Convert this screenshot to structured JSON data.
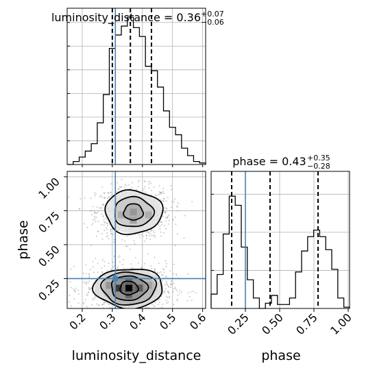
{
  "chart_data": {
    "type": "corner",
    "truth_color": "#4682b4",
    "panels": [
      {
        "id": "luminosity_distance-hist",
        "type": "histogram",
        "title": {
          "main": "luminosity_distance = 0.36",
          "sup": "+0.07",
          "sub": "−0.06"
        },
        "xlim": [
          0.15,
          0.61
        ],
        "ylim": [
          0,
          1.0
        ],
        "bin_edges": [
          0.15,
          0.17,
          0.19,
          0.21,
          0.23,
          0.25,
          0.27,
          0.29,
          0.31,
          0.33,
          0.35,
          0.37,
          0.39,
          0.41,
          0.43,
          0.45,
          0.47,
          0.49,
          0.51,
          0.53,
          0.55,
          0.57,
          0.59,
          0.61
        ],
        "counts": [
          0.0,
          0.02,
          0.05,
          0.09,
          0.14,
          0.28,
          0.47,
          0.78,
          0.87,
          0.93,
          0.99,
          0.92,
          0.86,
          0.66,
          0.63,
          0.52,
          0.36,
          0.25,
          0.2,
          0.11,
          0.06,
          0.02,
          0.01
        ],
        "quantiles": [
          0.3,
          0.36,
          0.43
        ],
        "truth": 0.31
      },
      {
        "id": "phase-hist",
        "type": "histogram",
        "title": {
          "main": "phase = 0.43",
          "sup": "+0.35",
          "sub": "−0.28"
        },
        "xlim": [
          0.0,
          1.01
        ],
        "ylim": [
          0,
          1.0
        ],
        "bin_edges": [
          0.0,
          0.044,
          0.088,
          0.132,
          0.176,
          0.22,
          0.264,
          0.308,
          0.352,
          0.396,
          0.44,
          0.484,
          0.528,
          0.572,
          0.616,
          0.66,
          0.704,
          0.748,
          0.792,
          0.836,
          0.88,
          0.924,
          0.968,
          1.01
        ],
        "counts": [
          0.11,
          0.26,
          0.57,
          0.86,
          0.79,
          0.47,
          0.22,
          0.08,
          0.0,
          0.04,
          0.1,
          0.03,
          0.03,
          0.08,
          0.28,
          0.44,
          0.55,
          0.6,
          0.55,
          0.45,
          0.3,
          0.08,
          0.01
        ],
        "quantiles": [
          0.15,
          0.43,
          0.78
        ],
        "truth": 0.25
      },
      {
        "id": "2d-density",
        "type": "contour",
        "xlim": [
          0.15,
          0.61
        ],
        "ylim": [
          0.03,
          1.04
        ],
        "truth": {
          "x": 0.31,
          "y": 0.25
        },
        "modes": [
          {
            "x": 0.37,
            "y": 0.74,
            "contours": [
              {
                "rx": 0.032,
                "ry": 0.06
              },
              {
                "rx": 0.065,
                "ry": 0.11
              },
              {
                "rx": 0.095,
                "ry": 0.16
              }
            ]
          },
          {
            "x": 0.355,
            "y": 0.18,
            "contours": [
              {
                "rx": 0.03,
                "ry": 0.05
              },
              {
                "rx": 0.06,
                "ry": 0.09
              },
              {
                "rx": 0.09,
                "ry": 0.12
              },
              {
                "rx": 0.115,
                "ry": 0.145
              }
            ]
          }
        ],
        "density_cells": [
          {
            "x": 0.37,
            "y": 0.74,
            "level": 0.35
          },
          {
            "x": 0.33,
            "y": 0.72,
            "level": 0.25
          },
          {
            "x": 0.42,
            "y": 0.72,
            "level": 0.25
          },
          {
            "x": 0.37,
            "y": 0.68,
            "level": 0.3
          },
          {
            "x": 0.355,
            "y": 0.18,
            "level": 1.0
          },
          {
            "x": 0.32,
            "y": 0.18,
            "level": 0.75
          },
          {
            "x": 0.39,
            "y": 0.18,
            "level": 0.6
          },
          {
            "x": 0.355,
            "y": 0.23,
            "level": 0.55
          },
          {
            "x": 0.355,
            "y": 0.13,
            "level": 0.55
          },
          {
            "x": 0.29,
            "y": 0.2,
            "level": 0.35
          },
          {
            "x": 0.42,
            "y": 0.2,
            "level": 0.3
          }
        ]
      }
    ],
    "x_ticks_lumdist": [
      "0.2",
      "0.3",
      "0.4",
      "0.5",
      "0.6"
    ],
    "x_tick_values_lumdist": [
      0.2,
      0.3,
      0.4,
      0.5,
      0.6
    ],
    "y_ticks_phase": [
      "0.25",
      "0.50",
      "0.75",
      "1.00"
    ],
    "y_tick_values_phase": [
      0.25,
      0.5,
      0.75,
      1.0
    ],
    "x_ticks_phase": [
      "0.25",
      "0.50",
      "0.75",
      "1.00"
    ],
    "x_tick_values_phase": [
      0.25,
      0.5,
      0.75,
      1.0
    ],
    "xlabel_left": "luminosity_distance",
    "xlabel_right": "phase",
    "ylabel": "phase",
    "grid": true
  }
}
